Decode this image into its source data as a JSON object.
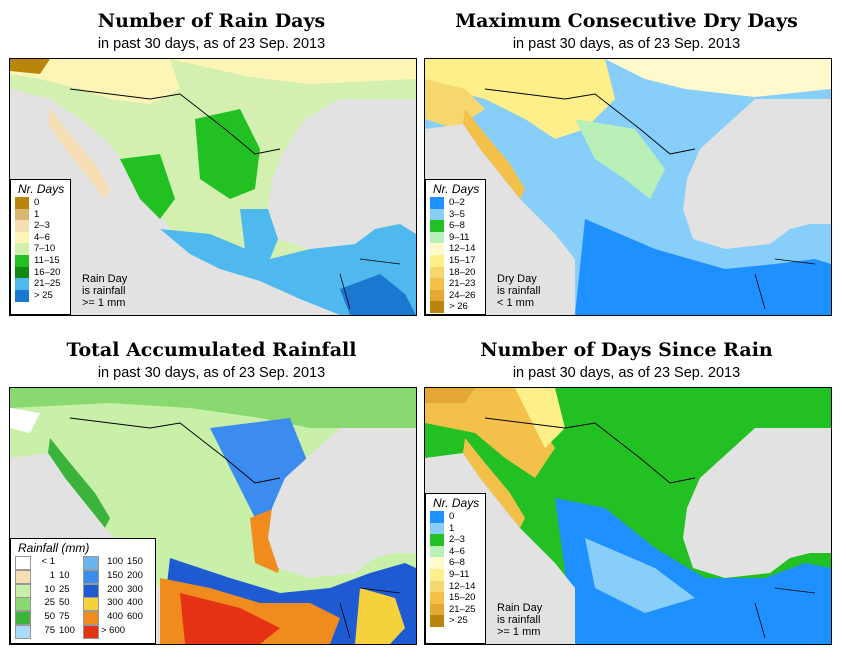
{
  "panels": [
    {
      "title": "Number of Rain Days",
      "subtitle": "in past 30 days, as of  23 Sep. 2013",
      "legend_title": "Nr. Days",
      "legend": [
        {
          "label": "0",
          "color": "#b8860b"
        },
        {
          "label": "1",
          "color": "#d8b870"
        },
        {
          "label": "2–3",
          "color": "#f5deb3"
        },
        {
          "label": "4–6",
          "color": "#fdf5b5"
        },
        {
          "label": "7–10",
          "color": "#d4f0b0"
        },
        {
          "label": "11–15",
          "color": "#22c022"
        },
        {
          "label": "16–20",
          "color": "#118811"
        },
        {
          "label": "21–25",
          "color": "#4fb8ee"
        },
        {
          "label": "> 25",
          "color": "#1a78d0"
        }
      ],
      "note": [
        "Rain Day",
        "is rainfall",
        ">= 1 mm"
      ]
    },
    {
      "title": "Maximum Consecutive Dry Days",
      "subtitle": "in past 30 days, as of  23 Sep. 2013",
      "legend_title": "Nr. Days",
      "legend": [
        {
          "label": "0–2",
          "color": "#1e90ff"
        },
        {
          "label": "3–5",
          "color": "#87cefa"
        },
        {
          "label": "6–8",
          "color": "#22c022"
        },
        {
          "label": "9–11",
          "color": "#b8f0b8"
        },
        {
          "label": "12–14",
          "color": "#fffacd"
        },
        {
          "label": "15–17",
          "color": "#fdf08a"
        },
        {
          "label": "18–20",
          "color": "#f5d76e"
        },
        {
          "label": "21–23",
          "color": "#f3c14a"
        },
        {
          "label": "24–26",
          "color": "#e6a834"
        },
        {
          "label": "> 26",
          "color": "#b8860b"
        }
      ],
      "note": [
        "Dry Day",
        "is rainfall",
        "< 1 mm"
      ]
    },
    {
      "title": "Total Accumulated Rainfall",
      "subtitle": "in past 30 days, as of  23 Sep. 2013",
      "legend_title": "Rainfall (mm)",
      "legend_left": [
        {
          "lo": "< 1",
          "hi": "",
          "color": "#ffffff"
        },
        {
          "lo": "1",
          "hi": "10",
          "color": "#f5deb3"
        },
        {
          "lo": "10",
          "hi": "25",
          "color": "#c8f0a8"
        },
        {
          "lo": "25",
          "hi": "50",
          "color": "#8ad870"
        },
        {
          "lo": "50",
          "hi": "75",
          "color": "#3cb43c"
        },
        {
          "lo": "75",
          "hi": "100",
          "color": "#a8dcf8"
        }
      ],
      "legend_right": [
        {
          "lo": "100",
          "hi": "150",
          "color": "#6cb4f0"
        },
        {
          "lo": "150",
          "hi": "200",
          "color": "#3c8cf0"
        },
        {
          "lo": "200",
          "hi": "300",
          "color": "#1e5ad2"
        },
        {
          "lo": "300",
          "hi": "400",
          "color": "#f5d23c"
        },
        {
          "lo": "400",
          "hi": "600",
          "color": "#f08c1e"
        },
        {
          "lo": "> 600",
          "hi": "",
          "color": "#e63214"
        }
      ]
    },
    {
      "title": "Number of Days Since Rain",
      "subtitle": "in past 30 days, as of  23 Sep. 2013",
      "legend_title": "Nr. Days",
      "legend": [
        {
          "label": "0",
          "color": "#1e90ff"
        },
        {
          "label": "1",
          "color": "#87cefa"
        },
        {
          "label": "2–3",
          "color": "#22c022"
        },
        {
          "label": "4–6",
          "color": "#b8f0b8"
        },
        {
          "label": "6–8",
          "color": "#fffacd"
        },
        {
          "label": "9–11",
          "color": "#fdf08a"
        },
        {
          "label": "12–14",
          "color": "#f5d76e"
        },
        {
          "label": "15–20",
          "color": "#f3c14a"
        },
        {
          "label": "21–25",
          "color": "#e6a834"
        },
        {
          "label": "> 25",
          "color": "#b8860b"
        }
      ],
      "note": [
        "Rain Day",
        "is rainfall",
        ">= 1 mm"
      ]
    }
  ]
}
